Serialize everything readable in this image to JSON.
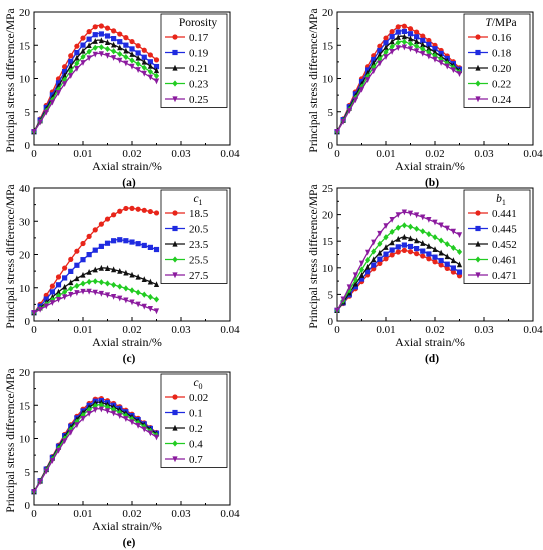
{
  "chart_data": [
    {
      "type": "line",
      "panel_label": "(a)",
      "xlabel": "Axial strain/%",
      "ylabel": "Principal stress difference/MPa",
      "xlim": [
        0,
        0.04
      ],
      "ylim": [
        0,
        20
      ],
      "xticks": [
        "0",
        "0.01",
        "0.02",
        "0.03",
        "0.04"
      ],
      "yticks": [
        "0",
        "5",
        "10",
        "15",
        "20"
      ],
      "legend": {
        "title": "Porosity",
        "title_style": "plain",
        "placement": "top-right"
      },
      "peak_x": 0.013,
      "series": [
        {
          "name": "0.17",
          "color": "#e8251a",
          "marker": "circle",
          "peak": 18.0,
          "end": 12.8
        },
        {
          "name": "0.19",
          "color": "#1f2be0",
          "marker": "square",
          "peak": 16.8,
          "end": 11.8
        },
        {
          "name": "0.21",
          "color": "#111111",
          "marker": "triangle-up",
          "peak": 15.8,
          "end": 11.2
        },
        {
          "name": "0.23",
          "color": "#22cc22",
          "marker": "diamond",
          "peak": 14.8,
          "end": 10.4
        },
        {
          "name": "0.25",
          "color": "#8b1a9e",
          "marker": "triangle-down",
          "peak": 13.8,
          "end": 9.6
        }
      ]
    },
    {
      "type": "line",
      "panel_label": "(b)",
      "xlabel": "Axial strain/%",
      "ylabel": "Principal stress difference/MPa",
      "xlim": [
        0,
        0.04
      ],
      "ylim": [
        0,
        20
      ],
      "xticks": [
        "0",
        "0.01",
        "0.02",
        "0.03",
        "0.04"
      ],
      "yticks": [
        "0",
        "5",
        "10",
        "15",
        "20"
      ],
      "legend": {
        "title": "T/MPa",
        "title_style": "italic-first",
        "placement": "top-right"
      },
      "peak_x": 0.013,
      "series": [
        {
          "name": "0.16",
          "color": "#e8251a",
          "marker": "circle",
          "peak": 18.0,
          "end": 11.6
        },
        {
          "name": "0.18",
          "color": "#1f2be0",
          "marker": "square",
          "peak": 17.2,
          "end": 11.4
        },
        {
          "name": "0.20",
          "color": "#111111",
          "marker": "triangle-up",
          "peak": 16.4,
          "end": 11.2
        },
        {
          "name": "0.22",
          "color": "#22cc22",
          "marker": "diamond",
          "peak": 15.6,
          "end": 11.0
        },
        {
          "name": "0.24",
          "color": "#8b1a9e",
          "marker": "triangle-down",
          "peak": 14.8,
          "end": 10.7
        }
      ]
    },
    {
      "type": "line",
      "panel_label": "(c)",
      "xlabel": "Axial strain/%",
      "ylabel": "Principal stress difference/MPa",
      "xlim": [
        0,
        0.04
      ],
      "ylim": [
        0,
        40
      ],
      "xticks": [
        "0",
        "0.01",
        "0.02",
        "0.03",
        "0.04"
      ],
      "yticks": [
        "0",
        "10",
        "20",
        "30",
        "40"
      ],
      "legend": {
        "title": "c1",
        "title_style": "italic-sub",
        "placement": "top-right"
      },
      "series": [
        {
          "name": "18.5",
          "color": "#e8251a",
          "marker": "circle",
          "peak_x": 0.019,
          "peak": 34.0,
          "end": 32.5
        },
        {
          "name": "20.5",
          "color": "#1f2be0",
          "marker": "square",
          "peak_x": 0.017,
          "peak": 24.5,
          "end": 21.5
        },
        {
          "name": "23.5",
          "color": "#111111",
          "marker": "triangle-up",
          "peak_x": 0.014,
          "peak": 16.0,
          "end": 11.0
        },
        {
          "name": "25.5",
          "color": "#22cc22",
          "marker": "diamond",
          "peak_x": 0.012,
          "peak": 12.0,
          "end": 6.5
        },
        {
          "name": "27.5",
          "color": "#8b1a9e",
          "marker": "triangle-down",
          "peak_x": 0.0105,
          "peak": 9.0,
          "end": 3.0
        }
      ]
    },
    {
      "type": "line",
      "panel_label": "(d)",
      "xlabel": "Axial strain/%",
      "ylabel": "Principal stress difference/MPa",
      "xlim": [
        0,
        0.04
      ],
      "ylim": [
        0,
        25
      ],
      "xticks": [
        "0",
        "0.01",
        "0.02",
        "0.03",
        "0.04"
      ],
      "yticks": [
        "0",
        "5",
        "10",
        "15",
        "20",
        "25"
      ],
      "legend": {
        "title": "b1",
        "title_style": "italic-sub",
        "placement": "top-right"
      },
      "peak_x": 0.0135,
      "series": [
        {
          "name": "0.441",
          "color": "#e8251a",
          "marker": "circle",
          "peak": 13.3,
          "end": 8.5
        },
        {
          "name": "0.445",
          "color": "#1f2be0",
          "marker": "square",
          "peak": 14.3,
          "end": 9.2
        },
        {
          "name": "0.452",
          "color": "#111111",
          "marker": "triangle-up",
          "peak": 15.8,
          "end": 10.6
        },
        {
          "name": "0.461",
          "color": "#22cc22",
          "marker": "diamond",
          "peak": 18.0,
          "end": 13.0
        },
        {
          "name": "0.471",
          "color": "#8b1a9e",
          "marker": "triangle-down",
          "peak": 20.5,
          "end": 16.2
        }
      ]
    },
    {
      "type": "line",
      "panel_label": "(e)",
      "xlabel": "Axial strain/%",
      "ylabel": "Principal stress difference/MPa",
      "xlim": [
        0,
        0.04
      ],
      "ylim": [
        0,
        20
      ],
      "xticks": [
        "0",
        "0.01",
        "0.02",
        "0.03",
        "0.04"
      ],
      "yticks": [
        "0",
        "5",
        "10",
        "15",
        "20"
      ],
      "legend": {
        "title": "c0",
        "title_style": "italic-sub",
        "placement": "top-right"
      },
      "peak_x": 0.013,
      "series": [
        {
          "name": "0.02",
          "color": "#e8251a",
          "marker": "circle",
          "peak": 16.1,
          "end": 10.9
        },
        {
          "name": "0.1",
          "color": "#1f2be0",
          "marker": "square",
          "peak": 15.8,
          "end": 10.8
        },
        {
          "name": "0.2",
          "color": "#111111",
          "marker": "triangle-up",
          "peak": 15.5,
          "end": 10.7
        },
        {
          "name": "0.4",
          "color": "#22cc22",
          "marker": "diamond",
          "peak": 15.1,
          "end": 10.5
        },
        {
          "name": "0.7",
          "color": "#8b1a9e",
          "marker": "triangle-down",
          "peak": 14.5,
          "end": 10.2
        }
      ]
    }
  ]
}
